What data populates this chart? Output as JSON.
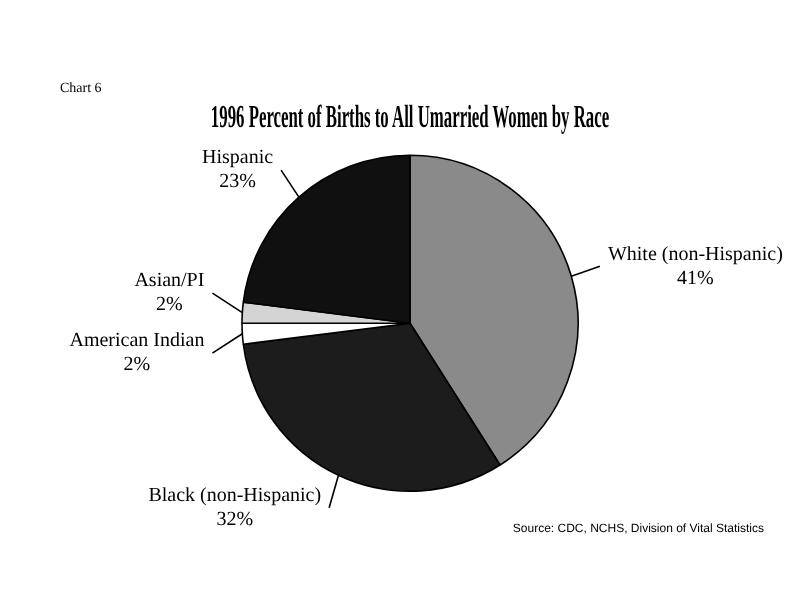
{
  "chart_data": {
    "type": "pie",
    "title": "1996 Percent of Births to All Umarried Women by Race",
    "categories": [
      "White (non-Hispanic)",
      "Black (non-Hispanic)",
      "American Indian",
      "Asian/PI",
      "Hispanic"
    ],
    "values": [
      41,
      32,
      2,
      2,
      23
    ],
    "value_labels": [
      "41%",
      "32%",
      "2%",
      "2%",
      "23%"
    ],
    "colors": [
      "#8a8a8a",
      "#1c1c1c",
      "#ffffff",
      "#d4d4d4",
      "#101010"
    ],
    "legend": false,
    "annotations": [
      "Chart 6",
      "Source: CDC, NCHS, Division of Vital Statistics"
    ]
  }
}
